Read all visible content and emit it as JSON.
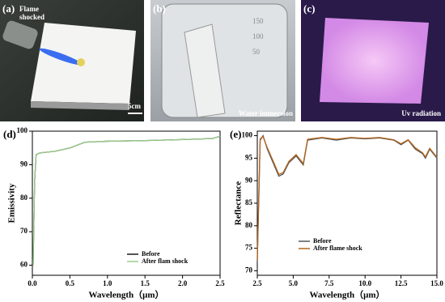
{
  "panels": [
    {
      "label": "(a)",
      "caption": "Flame shocked",
      "scale": "5cm"
    },
    {
      "label": "(b)",
      "caption": "Water immersion",
      "marks": [
        "150",
        "100",
        "50"
      ]
    },
    {
      "label": "(c)",
      "caption": "Uv radiation"
    }
  ],
  "chart_data": [
    {
      "type": "line",
      "panel_label": "(d)",
      "xlabel": "Wavelength（μm）",
      "ylabel": "Emissivity",
      "x": [
        0.01,
        0.03,
        0.05,
        0.1,
        0.3,
        0.5,
        0.7,
        1.0,
        1.5,
        2.0,
        2.4,
        2.5
      ],
      "xlim": [
        0,
        2.5
      ],
      "ylim": [
        57,
        100
      ],
      "xticks": [
        {
          "value": 0,
          "label": "0.0"
        },
        0.5,
        {
          "value": 1,
          "label": "1.0"
        },
        1.5,
        {
          "value": 2,
          "label": "2.0"
        },
        2.5
      ],
      "yticks": [
        60,
        70,
        80,
        90,
        100
      ],
      "legend": "lower right",
      "series": [
        {
          "name": "Before",
          "color": "#1a1a1a",
          "values": [
            60,
            85,
            93,
            93.5,
            94,
            95,
            96.7,
            97,
            97.2,
            97.5,
            97.8,
            98.5
          ]
        },
        {
          "name": "After flam shock",
          "color": "#9acd8a",
          "values": [
            60,
            85,
            93,
            93.5,
            94,
            95,
            96.7,
            97,
            97.2,
            97.5,
            97.8,
            98.5
          ]
        }
      ]
    },
    {
      "type": "line",
      "panel_label": "(e)",
      "xlabel": "Wavelength（μm）",
      "ylabel": "Reflectance",
      "x": [
        2.5,
        2.7,
        2.9,
        3.2,
        3.6,
        4.0,
        4.3,
        4.7,
        5.2,
        5.7,
        6.0,
        7.0,
        8.0,
        9.0,
        10.0,
        11.0,
        12.0,
        12.5,
        13.0,
        13.5,
        14.0,
        14.2,
        14.5,
        15.0
      ],
      "xlim": [
        2.5,
        15
      ],
      "ylim": [
        69,
        101
      ],
      "xticks": [
        2.5,
        {
          "value": 5,
          "label": "5.0"
        },
        7.5,
        {
          "value": 10,
          "label": "10.0"
        },
        12.5,
        {
          "value": 15,
          "label": "15.0"
        }
      ],
      "yticks": [
        70,
        75,
        80,
        85,
        90,
        95,
        100
      ],
      "legend": "lower center",
      "series": [
        {
          "name": "Before",
          "color": "#555555",
          "values": [
            72,
            99,
            100,
            97,
            94,
            91,
            91.5,
            94,
            95.5,
            93.5,
            99,
            99.5,
            99,
            99.5,
            99.3,
            99.5,
            99,
            98,
            99,
            97,
            96,
            95,
            97,
            95
          ]
        },
        {
          "name": "After flame shock",
          "color": "#b5651d",
          "values": [
            72.5,
            99.3,
            99.8,
            97.3,
            94.4,
            91.4,
            91.8,
            94.3,
            95.8,
            93.8,
            99.2,
            99.6,
            99.2,
            99.6,
            99.4,
            99.6,
            99.1,
            98.2,
            99.1,
            97.3,
            96.2,
            95.3,
            97.2,
            95.2
          ]
        }
      ]
    }
  ]
}
